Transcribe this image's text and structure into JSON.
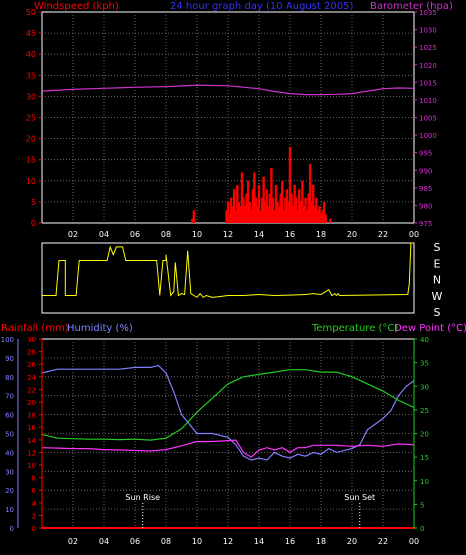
{
  "header": {
    "left": "Windspeed (kph)",
    "center": "24 hour graph day (10 August 2005)",
    "right": "Barometer (hpa)"
  },
  "colors": {
    "wind": "#ff0000",
    "baro": "#cc33cc",
    "dir": "#ffff00",
    "temp": "#22cc22",
    "dew": "#ff33ff",
    "hum": "#8080ff",
    "rain": "#ff0000",
    "grid": "#808080",
    "axis_x": "#ffffff"
  },
  "bottom_header": {
    "rain": "Rainfall (mm)",
    "hum": "Humidity (%)",
    "temp": "Temperature (°C)",
    "dew": "Dew Point (°C)"
  },
  "annotations": {
    "sunrise": "Sun Rise",
    "sunset": "Sun Set"
  },
  "chart_data": [
    {
      "type": "line",
      "name": "wind-baro",
      "x_ticks": [
        "02",
        "04",
        "06",
        "08",
        "10",
        "12",
        "14",
        "16",
        "18",
        "20",
        "22",
        "00"
      ],
      "xlim": [
        0,
        24
      ],
      "y_left": {
        "ylim": [
          0,
          50
        ],
        "ticks": [
          0,
          5,
          10,
          15,
          20,
          25,
          30,
          35,
          40,
          45,
          50
        ]
      },
      "y_right": {
        "ylim": [
          975,
          1035
        ],
        "ticks": [
          975,
          980,
          985,
          990,
          995,
          1000,
          1005,
          1010,
          1015,
          1020,
          1025,
          1030,
          1035
        ]
      },
      "series": [
        {
          "name": "Windspeed (kph)",
          "axis": "left",
          "style": "bars",
          "x": [
            9.7,
            9.8,
            11.9,
            12.0,
            12.1,
            12.2,
            12.3,
            12.4,
            12.5,
            12.6,
            12.7,
            12.8,
            12.9,
            13.0,
            13.1,
            13.2,
            13.3,
            13.4,
            13.5,
            13.6,
            13.7,
            13.8,
            13.9,
            14.0,
            14.1,
            14.2,
            14.3,
            14.4,
            14.5,
            14.6,
            14.7,
            14.8,
            14.9,
            15.0,
            15.1,
            15.2,
            15.3,
            15.4,
            15.5,
            15.6,
            15.7,
            15.8,
            15.9,
            16.0,
            16.1,
            16.2,
            16.3,
            16.4,
            16.5,
            16.6,
            16.7,
            16.8,
            16.9,
            17.0,
            17.1,
            17.2,
            17.3,
            17.4,
            17.5,
            17.6,
            17.7,
            17.8,
            17.9,
            18.0,
            18.1,
            18.2,
            18.3,
            18.6
          ],
          "values": [
            1,
            3,
            3,
            5,
            2,
            6,
            4,
            8,
            3,
            9,
            5,
            4,
            12,
            6,
            4,
            7,
            10,
            5,
            3,
            8,
            12,
            6,
            4,
            9,
            3,
            6,
            11,
            5,
            8,
            4,
            7,
            13,
            6,
            3,
            9,
            5,
            4,
            7,
            10,
            3,
            6,
            8,
            5,
            18,
            7,
            4,
            9,
            6,
            3,
            8,
            5,
            10,
            4,
            6,
            3,
            7,
            14,
            5,
            9,
            4,
            6,
            3,
            4,
            2,
            3,
            5,
            2,
            1
          ]
        },
        {
          "name": "Barometer (hpa)",
          "axis": "right",
          "style": "line",
          "x": [
            0,
            2,
            4,
            6,
            8,
            10,
            12,
            14,
            15,
            16,
            17,
            18,
            19,
            20,
            21,
            22,
            23,
            24
          ],
          "values": [
            1012.5,
            1013.0,
            1013.3,
            1013.6,
            1013.8,
            1014.2,
            1014.0,
            1013.2,
            1012.4,
            1011.8,
            1011.5,
            1011.5,
            1011.6,
            1011.8,
            1012.5,
            1013.2,
            1013.4,
            1013.3
          ]
        }
      ]
    },
    {
      "type": "line",
      "name": "wind-direction",
      "compass_labels": [
        "S",
        "E",
        "N",
        "W",
        "S"
      ],
      "xlim": [
        0,
        24
      ],
      "ylim": [
        0,
        360
      ],
      "series": [
        {
          "name": "Wind direction",
          "x": [
            0,
            0.9,
            0.9,
            1.1,
            1.1,
            1.5,
            1.5,
            2.2,
            2.2,
            2.4,
            2.4,
            2.6,
            2.6,
            4.2,
            4.2,
            4.4,
            4.4,
            4.6,
            4.6,
            4.8,
            4.8,
            5.2,
            5.2,
            5.4,
            5.4,
            6.0,
            6.0,
            7.4,
            7.4,
            7.6,
            7.6,
            7.8,
            7.8,
            8.0,
            8.0,
            8.3,
            8.5,
            8.6,
            8.8,
            9.0,
            9.2,
            9.4,
            9.6,
            9.8,
            10.0,
            10.2,
            10.4,
            10.6,
            10.8,
            11.0,
            11.5,
            12,
            13,
            14,
            15,
            16,
            17,
            17.5,
            18,
            18.3,
            18.5,
            18.7,
            18.9,
            19.0,
            19.1,
            19.2,
            23.6,
            23.7,
            23.8,
            24
          ],
          "values": [
            90,
            90,
            90,
            270,
            270,
            270,
            90,
            90,
            90,
            270,
            270,
            270,
            270,
            270,
            270,
            340,
            340,
            300,
            300,
            340,
            340,
            340,
            340,
            270,
            270,
            270,
            270,
            270,
            270,
            90,
            90,
            270,
            270,
            270,
            300,
            90,
            110,
            260,
            90,
            100,
            95,
            320,
            100,
            90,
            80,
            100,
            80,
            90,
            85,
            80,
            85,
            90,
            90,
            95,
            90,
            92,
            95,
            100,
            95,
            110,
            120,
            90,
            100,
            90,
            100,
            90,
            95,
            150,
            360,
            360
          ]
        }
      ]
    },
    {
      "type": "line",
      "name": "temperature-humidity",
      "x_ticks": [
        "02",
        "04",
        "06",
        "08",
        "10",
        "12",
        "14",
        "16",
        "18",
        "20",
        "22",
        "00"
      ],
      "xlim": [
        0,
        24
      ],
      "y_left_hum": {
        "ylim": [
          0,
          100
        ],
        "ticks": [
          0,
          10,
          20,
          30,
          40,
          50,
          60,
          70,
          80,
          90,
          100
        ]
      },
      "y_left_rain": {
        "ylim": [
          0,
          30
        ],
        "ticks": [
          0,
          2,
          4,
          6,
          8,
          10,
          12,
          14,
          16,
          18,
          20,
          22,
          24,
          26,
          28,
          30
        ]
      },
      "y_right": {
        "ylim": [
          0,
          40
        ],
        "ticks": [
          0,
          5,
          10,
          15,
          20,
          25,
          30,
          35,
          40
        ]
      },
      "annotations": [
        {
          "x": 6.5,
          "key": "sunrise"
        },
        {
          "x": 20.5,
          "key": "sunset"
        }
      ],
      "series": [
        {
          "name": "Rainfall (mm)",
          "axis": "rain",
          "x": [
            0,
            24
          ],
          "values": [
            0,
            0
          ]
        },
        {
          "name": "Humidity (%)",
          "axis": "hum",
          "x": [
            0,
            0.5,
            1,
            2,
            3,
            4,
            5,
            6,
            7,
            7.5,
            8,
            8.5,
            9,
            10,
            11,
            12,
            12.5,
            13,
            13.5,
            14,
            14.5,
            15,
            15.5,
            16,
            16.5,
            17,
            17.5,
            18,
            18.5,
            19,
            20,
            20.5,
            21,
            21.5,
            22,
            22.5,
            23,
            23.5,
            24
          ],
          "values": [
            82,
            83,
            84,
            84,
            84,
            84,
            84,
            85,
            85,
            86,
            82,
            72,
            60,
            50,
            50,
            48,
            44,
            38,
            36,
            37,
            36,
            40,
            38,
            37,
            39,
            38,
            40,
            39,
            42,
            40,
            42,
            44,
            52,
            55,
            58,
            62,
            70,
            75,
            78
          ]
        },
        {
          "name": "Temperature (°C)",
          "axis": "right",
          "x": [
            0,
            1,
            2,
            3,
            4,
            5,
            6,
            7,
            8,
            9,
            10,
            11,
            12,
            13,
            14,
            15,
            16,
            17,
            18,
            19,
            20,
            21,
            22,
            23,
            24
          ],
          "values": [
            19.8,
            19,
            18.9,
            18.8,
            18.8,
            18.7,
            18.8,
            18.6,
            19,
            21,
            24.5,
            27.5,
            30.5,
            32,
            32.5,
            33,
            33.5,
            33.5,
            33,
            33,
            32,
            30.5,
            29,
            27,
            25.5
          ]
        },
        {
          "name": "Dew Point (°C)",
          "axis": "right",
          "x": [
            0,
            1,
            2,
            3,
            4,
            5,
            6,
            7,
            8,
            9,
            10,
            11,
            12,
            12.5,
            13,
            13.5,
            14,
            14.5,
            15,
            15.5,
            16,
            16.5,
            17,
            17.5,
            18,
            19,
            20,
            21,
            22,
            23,
            24
          ],
          "values": [
            17,
            16.9,
            16.8,
            16.8,
            16.6,
            16.5,
            16.4,
            16.3,
            16.6,
            17.4,
            18.3,
            18.3,
            18.5,
            18.6,
            16,
            15,
            16.5,
            17,
            16.5,
            17,
            16,
            17,
            17,
            17.5,
            17.5,
            17.5,
            17.3,
            17.5,
            17.3,
            17.8,
            17.6
          ]
        }
      ]
    }
  ]
}
